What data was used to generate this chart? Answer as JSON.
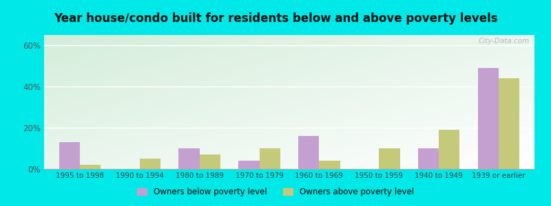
{
  "categories": [
    "1995 to 1998",
    "1990 to 1994",
    "1980 to 1989",
    "1970 to 1979",
    "1960 to 1969",
    "1950 to 1959",
    "1940 to 1949",
    "1939 or earlier"
  ],
  "below_poverty": [
    13,
    0,
    10,
    4,
    16,
    0,
    10,
    49
  ],
  "above_poverty": [
    2,
    5,
    7,
    10,
    4,
    10,
    19,
    44
  ],
  "below_color": "#c4a0d0",
  "above_color": "#c5c97a",
  "title": "Year house/condo built for residents below and above poverty levels",
  "title_fontsize": 12,
  "ylim": [
    0,
    65
  ],
  "yticks": [
    0,
    20,
    40,
    60
  ],
  "ytick_labels": [
    "0%",
    "20%",
    "40%",
    "60%"
  ],
  "legend_below": "Owners below poverty level",
  "legend_above": "Owners above poverty level",
  "bg_outer": "#00e8e8",
  "bg_plot_topleft": "#d4edda",
  "bg_plot_bottomright": "#f8fff8",
  "bar_width": 0.35,
  "watermark": "City-Data.com"
}
